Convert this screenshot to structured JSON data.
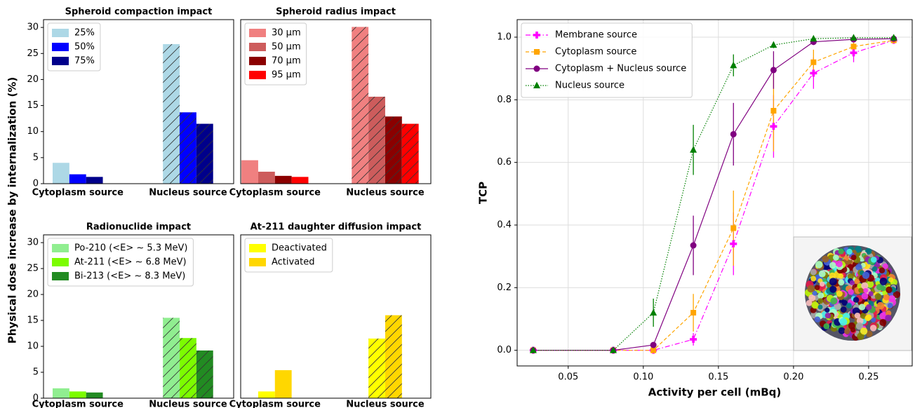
{
  "chart_data": [
    {
      "type": "bar",
      "title": "Spheroid compaction impact",
      "ylabel": "Physical dose increase by internalization (%)",
      "categories": [
        "Cytoplasm source",
        "Nucleus source"
      ],
      "hatch": [
        false,
        true
      ],
      "series": [
        {
          "name": "25%",
          "color": "#add8e6",
          "values": [
            4.0,
            26.8
          ]
        },
        {
          "name": "50%",
          "color": "#0000ff",
          "values": [
            1.8,
            13.7
          ]
        },
        {
          "name": "75%",
          "color": "#00008b",
          "values": [
            1.3,
            11.5
          ]
        }
      ],
      "ylim": [
        0,
        31.5
      ],
      "yticks": [
        0,
        5,
        10,
        15,
        20,
        25,
        30
      ],
      "legend": "upper left"
    },
    {
      "type": "bar",
      "title": "Spheroid radius impact",
      "categories": [
        "Cytoplasm source",
        "Nucleus source"
      ],
      "hatch": [
        false,
        true
      ],
      "series": [
        {
          "name": "30 µm",
          "color": "#f08080",
          "values": [
            4.5,
            30.1
          ]
        },
        {
          "name": "50 µm",
          "color": "#cd5c5c",
          "values": [
            2.3,
            16.7
          ]
        },
        {
          "name": "70 µm",
          "color": "#8b0000",
          "values": [
            1.5,
            12.9
          ]
        },
        {
          "name": "95 µm",
          "color": "#ff0000",
          "values": [
            1.3,
            11.5
          ]
        }
      ],
      "ylim": [
        0,
        31.5
      ],
      "legend": "upper left"
    },
    {
      "type": "bar",
      "title": "Radionuclide impact",
      "categories": [
        "Cytoplasm source",
        "Nucleus source"
      ],
      "hatch": [
        false,
        true
      ],
      "series": [
        {
          "name": "Po-210 (<E> ~ 5.3 MeV)",
          "color": "#90ee90",
          "values": [
            1.9,
            15.5
          ]
        },
        {
          "name": "At-211 (<E> ~ 6.8 MeV)",
          "color": "#7cfc00",
          "values": [
            1.3,
            11.6
          ]
        },
        {
          "name": "Bi-213 (<E> ~ 8.3 MeV)",
          "color": "#228b22",
          "values": [
            1.1,
            9.2
          ]
        }
      ],
      "ylim": [
        0,
        31.5
      ],
      "yticks": [
        0,
        5,
        10,
        15,
        20,
        25,
        30
      ],
      "legend": "upper left"
    },
    {
      "type": "bar",
      "title": "At-211 daughter diffusion impact",
      "categories": [
        "Cytoplasm source",
        "Nucleus source"
      ],
      "hatch": [
        false,
        true
      ],
      "series": [
        {
          "name": "Deactivated",
          "color": "#ffff00",
          "values": [
            1.3,
            11.5
          ]
        },
        {
          "name": "Activated",
          "color": "#ffd700",
          "values": [
            5.4,
            16.0
          ]
        }
      ],
      "ylim": [
        0,
        31.5
      ],
      "legend": "upper left"
    },
    {
      "type": "line",
      "xlabel": "Activity per cell (mBq)",
      "ylabel": "TCP",
      "x": [
        0.0267,
        0.08,
        0.1067,
        0.1333,
        0.16,
        0.1867,
        0.2133,
        0.24,
        0.2667
      ],
      "series": [
        {
          "name": "Membrane source",
          "color": "#ff00ff",
          "marker": "plus",
          "linestyle": "dashdot",
          "values": [
            0,
            0,
            0,
            0.035,
            0.34,
            0.715,
            0.885,
            0.95,
            0.99
          ],
          "errors": [
            0,
            0,
            0,
            0.02,
            0.1,
            0.1,
            0.05,
            0.03,
            0.01
          ]
        },
        {
          "name": "Cytoplasm source",
          "color": "#ffa500",
          "marker": "square",
          "linestyle": "dashed",
          "values": [
            0,
            0,
            0,
            0.12,
            0.39,
            0.765,
            0.92,
            0.97,
            0.99
          ],
          "errors": [
            0,
            0,
            0,
            0.06,
            0.12,
            0.13,
            0.04,
            0.02,
            0.01
          ]
        },
        {
          "name": "Cytoplasm + Nucleus source",
          "color": "#800080",
          "marker": "circle",
          "linestyle": "solid",
          "values": [
            0,
            0,
            0.017,
            0.335,
            0.69,
            0.895,
            0.985,
            0.993,
            0.995
          ],
          "errors": [
            0,
            0,
            0.01,
            0.095,
            0.1,
            0.06,
            0.01,
            0.005,
            0.005
          ]
        },
        {
          "name": "Nucleus source",
          "color": "#008000",
          "marker": "triangle",
          "linestyle": "dotted",
          "values": [
            0,
            0,
            0.12,
            0.64,
            0.91,
            0.975,
            0.995,
            0.998,
            0.998
          ],
          "errors": [
            0,
            0,
            0.045,
            0.08,
            0.035,
            0.01,
            0.005,
            0,
            0
          ]
        }
      ],
      "xlim": [
        0.016,
        0.279
      ],
      "ylim": [
        -0.05,
        1.056
      ],
      "xticks": [
        0.05,
        {
          "value": 0.1,
          "label": "0.10"
        },
        0.15,
        {
          "value": 0.2,
          "label": "0.20"
        },
        0.25
      ],
      "yticks": [
        {
          "value": 0,
          "label": "0.0"
        },
        {
          "value": 0.2,
          "label": "0.2"
        },
        {
          "value": 0.4,
          "label": "0.4"
        },
        {
          "value": 0.6,
          "label": "0.6"
        },
        {
          "value": 0.8,
          "label": "0.8"
        },
        {
          "value": 1,
          "label": "1.0"
        }
      ],
      "grid": true,
      "legend": "upper left"
    }
  ]
}
